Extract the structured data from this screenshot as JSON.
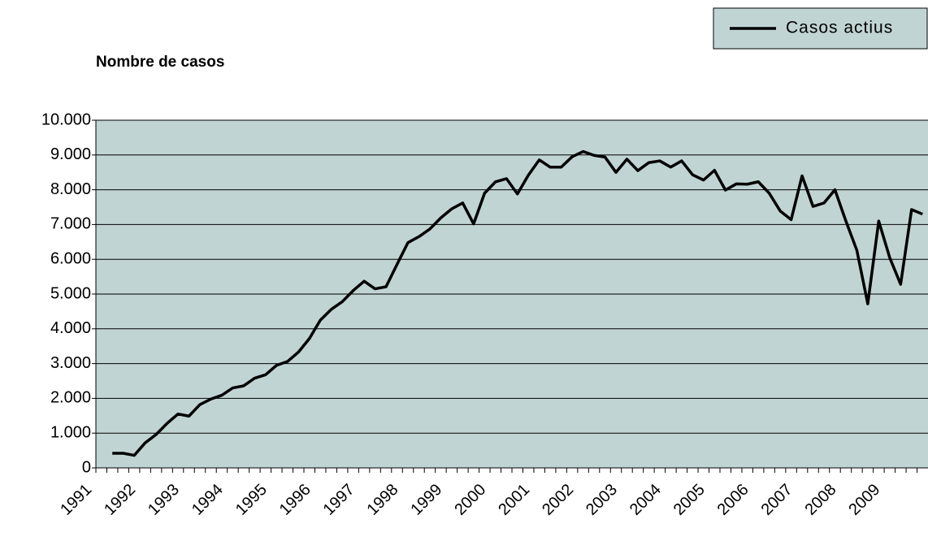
{
  "chart_data": {
    "type": "line",
    "y_axis_title": "Nombre de casos",
    "categories": [
      "1991",
      null,
      null,
      null,
      "1992",
      null,
      null,
      null,
      "1993",
      null,
      null,
      null,
      "1994",
      null,
      null,
      null,
      "1995",
      null,
      null,
      null,
      "1996",
      null,
      null,
      null,
      "1997",
      null,
      null,
      null,
      "1998",
      null,
      null,
      null,
      "1999",
      null,
      null,
      null,
      "2000",
      null,
      null,
      null,
      "2001",
      null,
      null,
      null,
      "2002",
      null,
      null,
      null,
      "2003",
      null,
      null,
      null,
      "2004",
      null,
      null,
      null,
      "2005",
      null,
      null,
      null,
      "2006",
      null,
      null,
      null,
      "2007",
      null,
      null,
      null,
      "2008",
      null,
      null,
      null,
      "2009",
      null,
      null,
      null
    ],
    "series": [
      {
        "name": "Casos actius",
        "color": "#000000",
        "values": [
          null,
          420,
          420,
          360,
          720,
          960,
          1280,
          1550,
          1490,
          1820,
          1980,
          2090,
          2300,
          2360,
          2580,
          2680,
          2950,
          3060,
          3330,
          3720,
          4250,
          4560,
          4780,
          5100,
          5370,
          5150,
          5210,
          5850,
          6480,
          6650,
          6870,
          7190,
          7450,
          7620,
          7020,
          7900,
          8230,
          8320,
          7880,
          8420,
          8860,
          8650,
          8650,
          8950,
          9100,
          8990,
          8940,
          8500,
          8880,
          8550,
          8780,
          8830,
          8650,
          8830,
          8430,
          8280,
          8560,
          7990,
          8170,
          8160,
          8230,
          7900,
          7390,
          7140,
          8400,
          7520,
          7620,
          8000,
          7100,
          6260,
          4720,
          7100,
          6050,
          5280,
          7430,
          7300
        ]
      }
    ],
    "ylim": [
      0,
      10000
    ],
    "yticks": [
      0,
      {
        "value": 1000,
        "label": "1.000"
      },
      {
        "value": 2000,
        "label": "2.000"
      },
      {
        "value": 3000,
        "label": "3.000"
      },
      {
        "value": 4000,
        "label": "4.000"
      },
      {
        "value": 5000,
        "label": "5.000"
      },
      {
        "value": 6000,
        "label": "6.000"
      },
      {
        "value": 7000,
        "label": "7.000"
      },
      {
        "value": 8000,
        "label": "8.000"
      },
      {
        "value": 9000,
        "label": "9.000"
      },
      {
        "value": 10000,
        "label": "10.000"
      }
    ],
    "grid": true,
    "legend": "top-right"
  }
}
